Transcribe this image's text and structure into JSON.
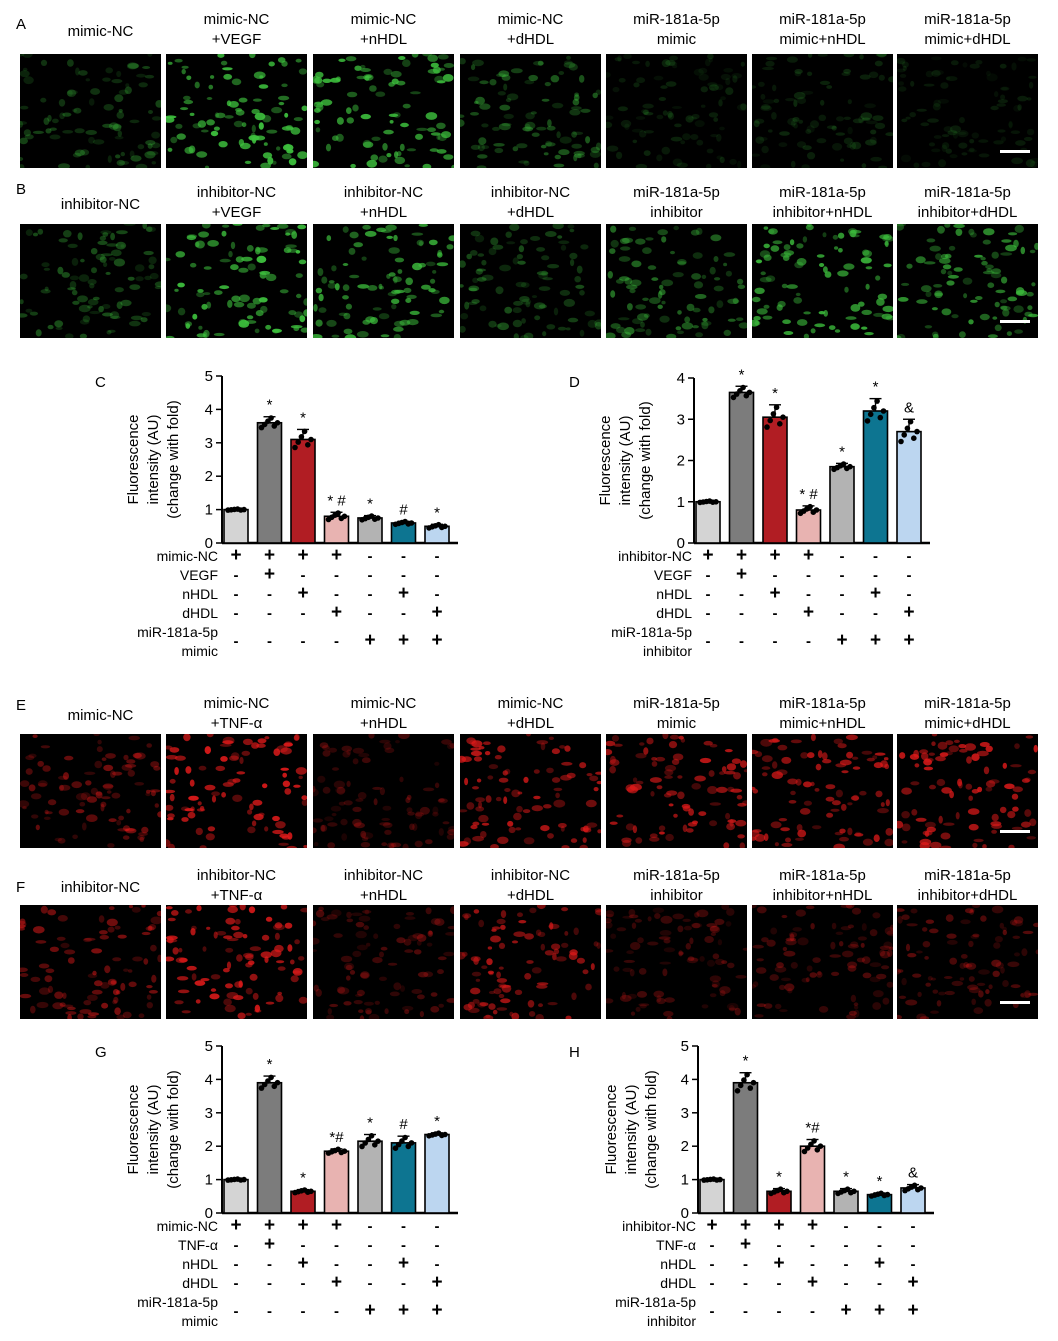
{
  "colors": {
    "gray_light": "#d4d4d4",
    "gray_dark": "#7c7c7c",
    "red": "#b11d23",
    "pink": "#e8b3b1",
    "gray_mid": "#b3b3b3",
    "teal": "#0d7591",
    "light_blue": "#bcd6f0",
    "green": "#3ec23e",
    "red_fluor": "#e01a1a"
  },
  "panels": [
    {
      "letter": "A",
      "labels": [
        "mimic-NC",
        "mimic-NC\n+VEGF",
        "mimic-NC\n+nHDL",
        "mimic-NC\n+dHDL",
        "miR-181a-5p\nmimic",
        "miR-181a-5p\nmimic+nHDL",
        "miR-181a-5p\nmimic+dHDL"
      ],
      "intensity": [
        0.35,
        0.95,
        0.9,
        0.45,
        0.18,
        0.2,
        0.15
      ]
    },
    {
      "letter": "B",
      "labels": [
        "inhibitor-NC",
        "inhibitor-NC\n+VEGF",
        "inhibitor-NC\n+nHDL",
        "inhibitor-NC\n+dHDL",
        "miR-181a-5p\ninhibitor",
        "miR-181a-5p\ninhibitor+nHDL",
        "miR-181a-5p\ninhibitor+dHDL"
      ],
      "intensity": [
        0.4,
        0.95,
        0.8,
        0.4,
        0.55,
        0.85,
        0.75
      ]
    },
    {
      "letter": "E",
      "labels": [
        "mimic-NC",
        "mimic-NC\n+TNF-α",
        "mimic-NC\n+nHDL",
        "mimic-NC\n+dHDL",
        "miR-181a-5p\nmimic",
        "miR-181a-5p\nmimic+nHDL",
        "miR-181a-5p\nmimic+dHDL"
      ],
      "intensity": [
        0.5,
        0.95,
        0.3,
        0.8,
        0.8,
        0.75,
        0.85
      ]
    },
    {
      "letter": "F",
      "labels": [
        "inhibitor-NC",
        "inhibitor-NC\n+TNF-α",
        "inhibitor-NC\n+nHDL",
        "inhibitor-NC\n+dHDL",
        "miR-181a-5p\ninhibitor",
        "miR-181a-5p\ninhibitor+nHDL",
        "miR-181a-5p\ninhibitor+dHDL"
      ],
      "intensity": [
        0.55,
        0.9,
        0.35,
        0.75,
        0.3,
        0.35,
        0.4
      ]
    }
  ],
  "chart_data": [
    {
      "id": "C",
      "type": "bar",
      "ylabel": [
        "Fluorescence",
        "intensity (AU)",
        "(change with fold)"
      ],
      "ylim": [
        0,
        5
      ],
      "yticks": [
        "0",
        "1",
        "2",
        "3",
        "4",
        "5"
      ],
      "values": [
        1.0,
        3.6,
        3.1,
        0.8,
        0.75,
        0.6,
        0.5
      ],
      "errors": [
        0.02,
        0.18,
        0.3,
        0.12,
        0.07,
        0.05,
        0.06
      ],
      "annotations": [
        "",
        "*",
        "*",
        "* #",
        "*",
        "#",
        "*"
      ],
      "row_labels": [
        "mimic-NC",
        "VEGF",
        "nHDL",
        "dHDL",
        "miR-181a-5p",
        "mimic"
      ],
      "matrix": [
        [
          "+",
          "+",
          "+",
          "+",
          "-",
          "-",
          "-"
        ],
        [
          "-",
          "+",
          "-",
          "-",
          "-",
          "-",
          "-"
        ],
        [
          "-",
          "-",
          "+",
          "-",
          "-",
          "+",
          "-"
        ],
        [
          "-",
          "-",
          "-",
          "+",
          "-",
          "-",
          "+"
        ],
        [
          "-",
          "-",
          "-",
          "-",
          "+",
          "+",
          "+"
        ]
      ]
    },
    {
      "id": "D",
      "type": "bar",
      "ylabel": [
        "Fluorescence",
        "intensity (AU)",
        "(change with fold)"
      ],
      "ylim": [
        0,
        4
      ],
      "yticks": [
        "0",
        "1",
        "2",
        "3",
        "4"
      ],
      "values": [
        1.0,
        3.65,
        3.05,
        0.8,
        1.85,
        3.2,
        2.7
      ],
      "errors": [
        0.02,
        0.15,
        0.3,
        0.1,
        0.08,
        0.3,
        0.3
      ],
      "annotations": [
        "",
        "*",
        "*",
        "* #",
        "*",
        "*",
        "&"
      ],
      "row_labels": [
        "inhibitor-NC",
        "VEGF",
        "nHDL",
        "dHDL",
        "miR-181a-5p",
        "inhibitor"
      ],
      "matrix": [
        [
          "+",
          "+",
          "+",
          "+",
          "-",
          "-",
          "-"
        ],
        [
          "-",
          "+",
          "-",
          "-",
          "-",
          "-",
          "-"
        ],
        [
          "-",
          "-",
          "+",
          "-",
          "-",
          "+",
          "-"
        ],
        [
          "-",
          "-",
          "-",
          "+",
          "-",
          "-",
          "+"
        ],
        [
          "-",
          "-",
          "-",
          "-",
          "+",
          "+",
          "+"
        ]
      ]
    },
    {
      "id": "G",
      "type": "bar",
      "ylabel": [
        "Fluorescence",
        "intensity (AU)",
        "(change with fold)"
      ],
      "ylim": [
        0,
        5
      ],
      "yticks": [
        "0",
        "1",
        "2",
        "3",
        "4",
        "5"
      ],
      "values": [
        1.0,
        3.9,
        0.65,
        1.85,
        2.15,
        2.1,
        2.35
      ],
      "errors": [
        0.02,
        0.2,
        0.05,
        0.07,
        0.2,
        0.2,
        0.05
      ],
      "annotations": [
        "",
        "*",
        "*",
        "*#",
        "*",
        "#",
        "*"
      ],
      "row_labels": [
        "mimic-NC",
        "TNF-α",
        "nHDL",
        "dHDL",
        "miR-181a-5p",
        "mimic"
      ],
      "matrix": [
        [
          "+",
          "+",
          "+",
          "+",
          "-",
          "-",
          "-"
        ],
        [
          "-",
          "+",
          "-",
          "-",
          "-",
          "-",
          "-"
        ],
        [
          "-",
          "-",
          "+",
          "-",
          "-",
          "+",
          "-"
        ],
        [
          "-",
          "-",
          "-",
          "+",
          "-",
          "-",
          "+"
        ],
        [
          "-",
          "-",
          "-",
          "-",
          "+",
          "+",
          "+"
        ]
      ]
    },
    {
      "id": "H",
      "type": "bar",
      "ylabel": [
        "Fluorescence",
        "intensity (AU)",
        "(change with fold)"
      ],
      "ylim": [
        0,
        5
      ],
      "yticks": [
        "0",
        "1",
        "2",
        "3",
        "4",
        "5"
      ],
      "values": [
        1.0,
        3.9,
        0.65,
        2.0,
        0.65,
        0.55,
        0.75
      ],
      "errors": [
        0.02,
        0.3,
        0.08,
        0.2,
        0.08,
        0.05,
        0.1
      ],
      "annotations": [
        "",
        "*",
        "*",
        "*#",
        "*",
        "*",
        "&"
      ],
      "row_labels": [
        "inhibitor-NC",
        "TNF-α",
        "nHDL",
        "dHDL",
        "miR-181a-5p",
        "inhibitor"
      ],
      "matrix": [
        [
          "+",
          "+",
          "+",
          "+",
          "-",
          "-",
          "-"
        ],
        [
          "-",
          "+",
          "-",
          "-",
          "-",
          "-",
          "-"
        ],
        [
          "-",
          "-",
          "+",
          "-",
          "-",
          "+",
          "-"
        ],
        [
          "-",
          "-",
          "-",
          "+",
          "-",
          "-",
          "+"
        ],
        [
          "-",
          "-",
          "-",
          "-",
          "+",
          "+",
          "+"
        ]
      ]
    }
  ]
}
